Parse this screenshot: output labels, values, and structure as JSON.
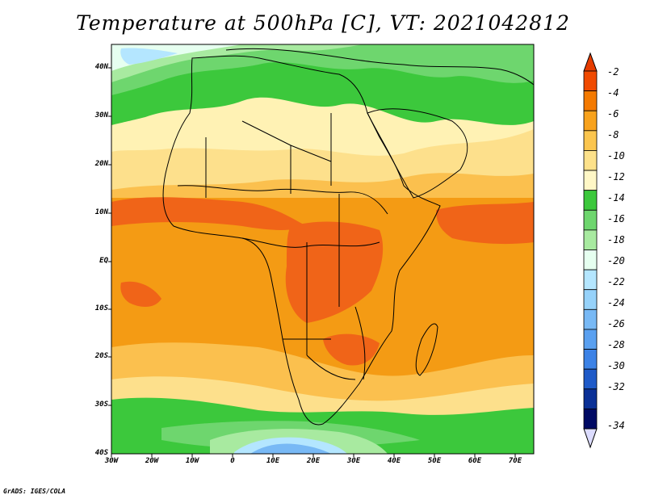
{
  "title": "Temperature at 500hPa [C], VT: 2021042812",
  "credit": "GrADS: IGES/COLA",
  "lat_ticks": [
    "40N",
    "30N",
    "20N",
    "10N",
    "EQ",
    "10S",
    "20S",
    "30S",
    "40S"
  ],
  "lon_ticks": [
    "30W",
    "20W",
    "10W",
    "0",
    "10E",
    "20E",
    "30E",
    "40E",
    "50E",
    "60E",
    "70E"
  ],
  "colorbar": {
    "labels": [
      "-2",
      "-4",
      "-6",
      "-8",
      "-10",
      "-12",
      "-14",
      "-16",
      "-18",
      "-20",
      "-22",
      "-24",
      "-26",
      "-28",
      "-30",
      "-32",
      "-34"
    ],
    "colors": [
      "#f04a00",
      "#f47a00",
      "#f8a21c",
      "#fbc54e",
      "#fde18a",
      "#fff7c6",
      "#3cc83c",
      "#6ed66e",
      "#a8eaa0",
      "#e6fff0",
      "#b4e6ff",
      "#96d2fa",
      "#78b9f5",
      "#5aa0f0",
      "#3c82e6",
      "#1e5ac8",
      "#0a3096",
      "#000a64"
    ],
    "top_arrow": "#e63c00",
    "bottom_arrow": "#dcdcff"
  },
  "legend_colors": {
    "warmest": "#f06418",
    "orange": "#f49b14",
    "lightorange": "#fbc04e",
    "yellow": "#fde08c",
    "paleyellow": "#fff2b4",
    "green": "#3cc83c",
    "lightgreen": "#6ed66e",
    "palegreen": "#a8eaa0",
    "cyan": "#e6fff0",
    "lightblue": "#b4e6ff",
    "blue": "#78b9f5"
  }
}
